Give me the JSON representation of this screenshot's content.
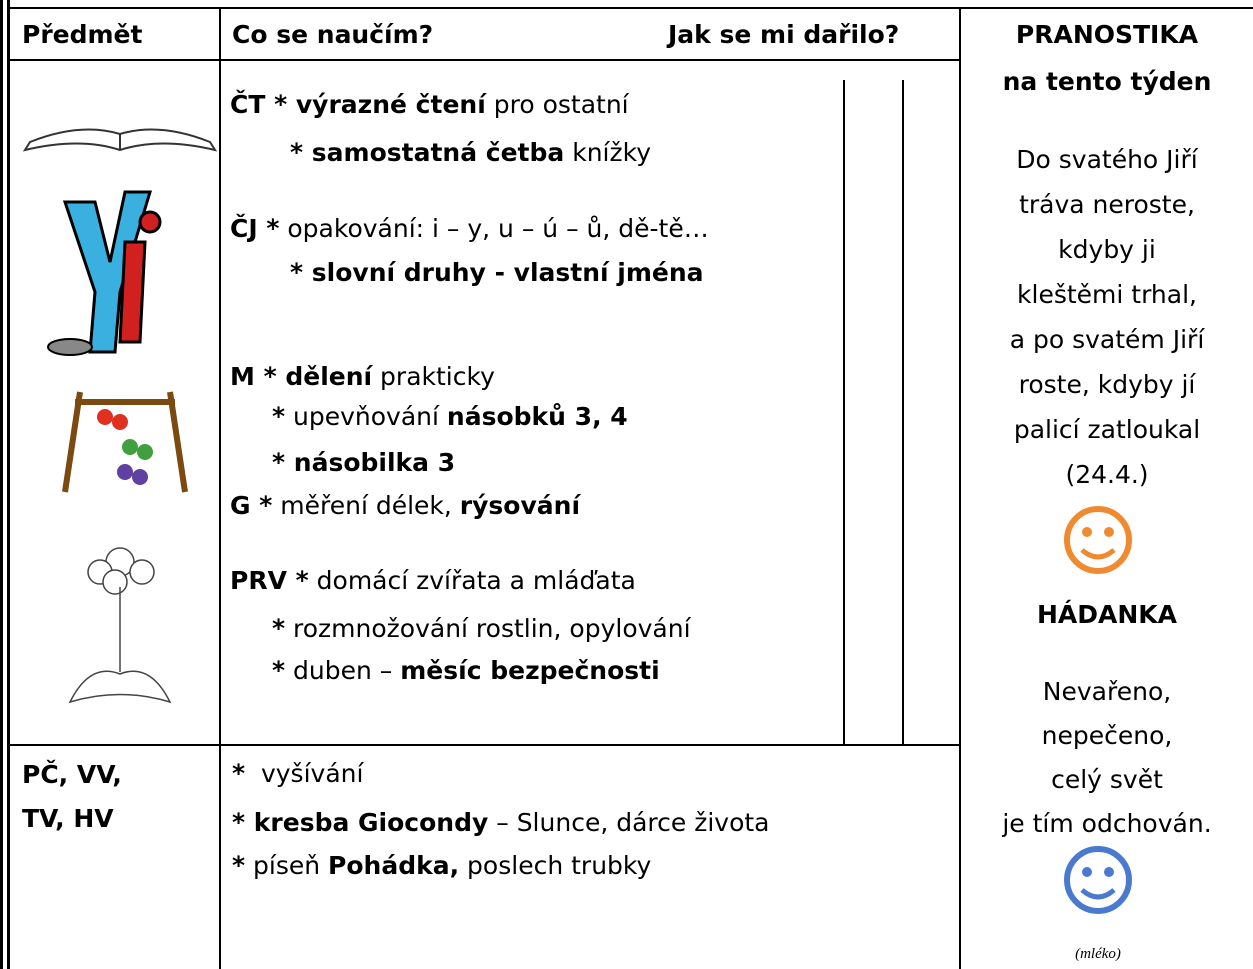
{
  "header": {
    "subject": "Předmět",
    "learn": "Co se naučím?",
    "progress": "Jak se mi dařilo?"
  },
  "main_lines": [
    [
      {
        "text": "ČT * výrazné čtení",
        "bold": true
      },
      {
        "text": " pro ostatní",
        "bold": false
      }
    ],
    [
      {
        "text": "* samostatná četba",
        "bold": true
      },
      {
        "text": " knížky",
        "bold": false
      }
    ],
    [
      {
        "text": "ČJ *",
        "bold": true
      },
      {
        "text": " opakování: i – y, u – ú – ů, dě-tě…",
        "bold": false
      }
    ],
    [
      {
        "text": "* slovní druhy - vlastní jména",
        "bold": true
      }
    ],
    [
      {
        "text": "M * dělení",
        "bold": true
      },
      {
        "text": " prakticky",
        "bold": false
      }
    ],
    [
      {
        "text": "*",
        "bold": true
      },
      {
        "text": " upevňování ",
        "bold": false
      },
      {
        "text": "násobků 3, 4",
        "bold": true
      }
    ],
    [
      {
        "text": "* násobilka 3",
        "bold": true
      }
    ],
    [
      {
        "text": "G *",
        "bold": true
      },
      {
        "text": " měření délek, ",
        "bold": false
      },
      {
        "text": "rýsování",
        "bold": true
      }
    ],
    [
      {
        "text": "PRV *",
        "bold": true
      },
      {
        "text": " domácí zvířata a mláďata",
        "bold": false
      }
    ],
    [
      {
        "text": "*",
        "bold": true
      },
      {
        "text": " rozmnožování rostlin, opylování",
        "bold": false
      }
    ],
    [
      {
        "text": "*",
        "bold": true
      },
      {
        "text": " duben – ",
        "bold": false
      },
      {
        "text": "měsíc bezpečnosti",
        "bold": true
      }
    ]
  ],
  "other_subjects": [
    "PČ, VV,",
    "TV, HV"
  ],
  "other_lines": [
    [
      {
        "text": "*",
        "bold": true
      },
      {
        "text": "  vyšívání",
        "bold": false
      }
    ],
    [
      {
        "text": "* kresba Giocondy",
        "bold": true
      },
      {
        "text": " – Slunce, dárce života",
        "bold": false
      }
    ],
    [
      {
        "text": "*",
        "bold": true
      },
      {
        "text": " píseň ",
        "bold": false
      },
      {
        "text": "Pohádka,",
        "bold": true
      },
      {
        "text": " poslech trubky",
        "bold": false
      }
    ]
  ],
  "forecast": {
    "title": "PRANOSTIKA",
    "subtitle": "na tento týden",
    "lines": [
      "Do svatého Jiří",
      "tráva neroste,",
      "kdyby ji",
      "kleštěmi trhal,",
      "a po svatém Jiří",
      "roste, kdyby jí",
      "palicí zatloukal",
      "(24.4.)"
    ],
    "riddle_title": "HÁDANKA",
    "riddle_lines": [
      "Nevařeno,",
      "nepečeno,",
      "celý svět",
      "je tím odchován."
    ],
    "answer": "(mléko)"
  }
}
